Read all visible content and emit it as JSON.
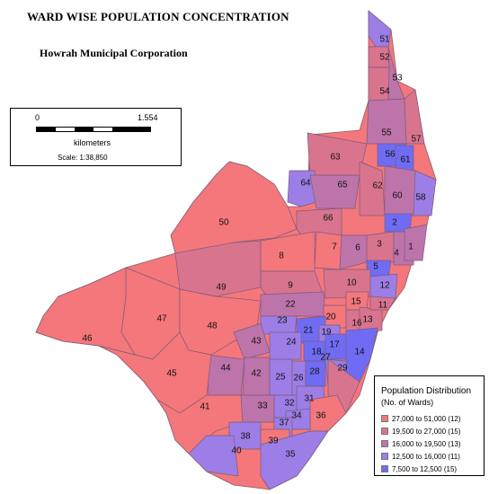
{
  "map": {
    "title": "WARD WISE POPULATION CONCENTRATION",
    "subtitle": "Howrah Municipal Corporation"
  },
  "scale": {
    "start": "0",
    "end": "1.554",
    "unit": "kilometers",
    "ratio": "Scale: 1:38,850"
  },
  "legend": {
    "title": "Population Distribution",
    "subtitle": "(No. of Wards)",
    "classes": [
      {
        "label": "27,000 to 51,000  (12)",
        "color": "#f4777b"
      },
      {
        "label": "19,500 to 27,000  (15)",
        "color": "#d9748f"
      },
      {
        "label": "16,000 to 19,500  (13)",
        "color": "#bd74ab"
      },
      {
        "label": "12,500 to 16,000  (11)",
        "color": "#9c7ee6"
      },
      {
        "label": "7,500 to 12,500  (15)",
        "color": "#6f6cf3"
      }
    ]
  },
  "wards": [
    {
      "id": "51",
      "cls": 3
    },
    {
      "id": "52",
      "cls": 1
    },
    {
      "id": "53",
      "cls": 2
    },
    {
      "id": "54",
      "cls": 1
    },
    {
      "id": "55",
      "cls": 2
    },
    {
      "id": "57",
      "cls": 1
    },
    {
      "id": "56",
      "cls": 4
    },
    {
      "id": "61",
      "cls": 4
    },
    {
      "id": "63",
      "cls": 1
    },
    {
      "id": "64",
      "cls": 3
    },
    {
      "id": "65",
      "cls": 2
    },
    {
      "id": "62",
      "cls": 1
    },
    {
      "id": "60",
      "cls": 2
    },
    {
      "id": "58",
      "cls": 3
    },
    {
      "id": "2",
      "cls": 4
    },
    {
      "id": "66",
      "cls": 1
    },
    {
      "id": "50",
      "cls": 0
    },
    {
      "id": "7",
      "cls": 0
    },
    {
      "id": "6",
      "cls": 2
    },
    {
      "id": "3",
      "cls": 1
    },
    {
      "id": "4",
      "cls": 2
    },
    {
      "id": "1",
      "cls": 2
    },
    {
      "id": "8",
      "cls": 0
    },
    {
      "id": "5",
      "cls": 4
    },
    {
      "id": "49",
      "cls": 1
    },
    {
      "id": "9",
      "cls": 1
    },
    {
      "id": "10",
      "cls": 1
    },
    {
      "id": "12",
      "cls": 3
    },
    {
      "id": "15",
      "cls": 0
    },
    {
      "id": "22",
      "cls": 2
    },
    {
      "id": "47",
      "cls": 0
    },
    {
      "id": "48",
      "cls": 0
    },
    {
      "id": "20",
      "cls": 0
    },
    {
      "id": "16",
      "cls": 1
    },
    {
      "id": "13",
      "cls": 1
    },
    {
      "id": "46",
      "cls": 0
    },
    {
      "id": "23",
      "cls": 3
    },
    {
      "id": "21",
      "cls": 4
    },
    {
      "id": "19",
      "cls": 3
    },
    {
      "id": "43",
      "cls": 2
    },
    {
      "id": "24",
      "cls": 3
    },
    {
      "id": "18",
      "cls": 4
    },
    {
      "id": "17",
      "cls": 4
    },
    {
      "id": "14",
      "cls": 4
    },
    {
      "id": "44",
      "cls": 2
    },
    {
      "id": "42",
      "cls": 2
    },
    {
      "id": "25",
      "cls": 3
    },
    {
      "id": "26",
      "cls": 3
    },
    {
      "id": "28",
      "cls": 4
    },
    {
      "id": "27",
      "cls": 3
    },
    {
      "id": "29",
      "cls": 1
    },
    {
      "id": "45",
      "cls": 0
    },
    {
      "id": "41",
      "cls": 0
    },
    {
      "id": "33",
      "cls": 2
    },
    {
      "id": "32",
      "cls": 3
    },
    {
      "id": "31",
      "cls": 3
    },
    {
      "id": "36",
      "cls": 0
    },
    {
      "id": "34",
      "cls": 3
    },
    {
      "id": "37",
      "cls": 3
    },
    {
      "id": "38",
      "cls": 3
    },
    {
      "id": "39",
      "cls": 0
    },
    {
      "id": "40",
      "cls": 3
    },
    {
      "id": "35",
      "cls": 3
    },
    {
      "id": "11",
      "cls": 1
    }
  ]
}
